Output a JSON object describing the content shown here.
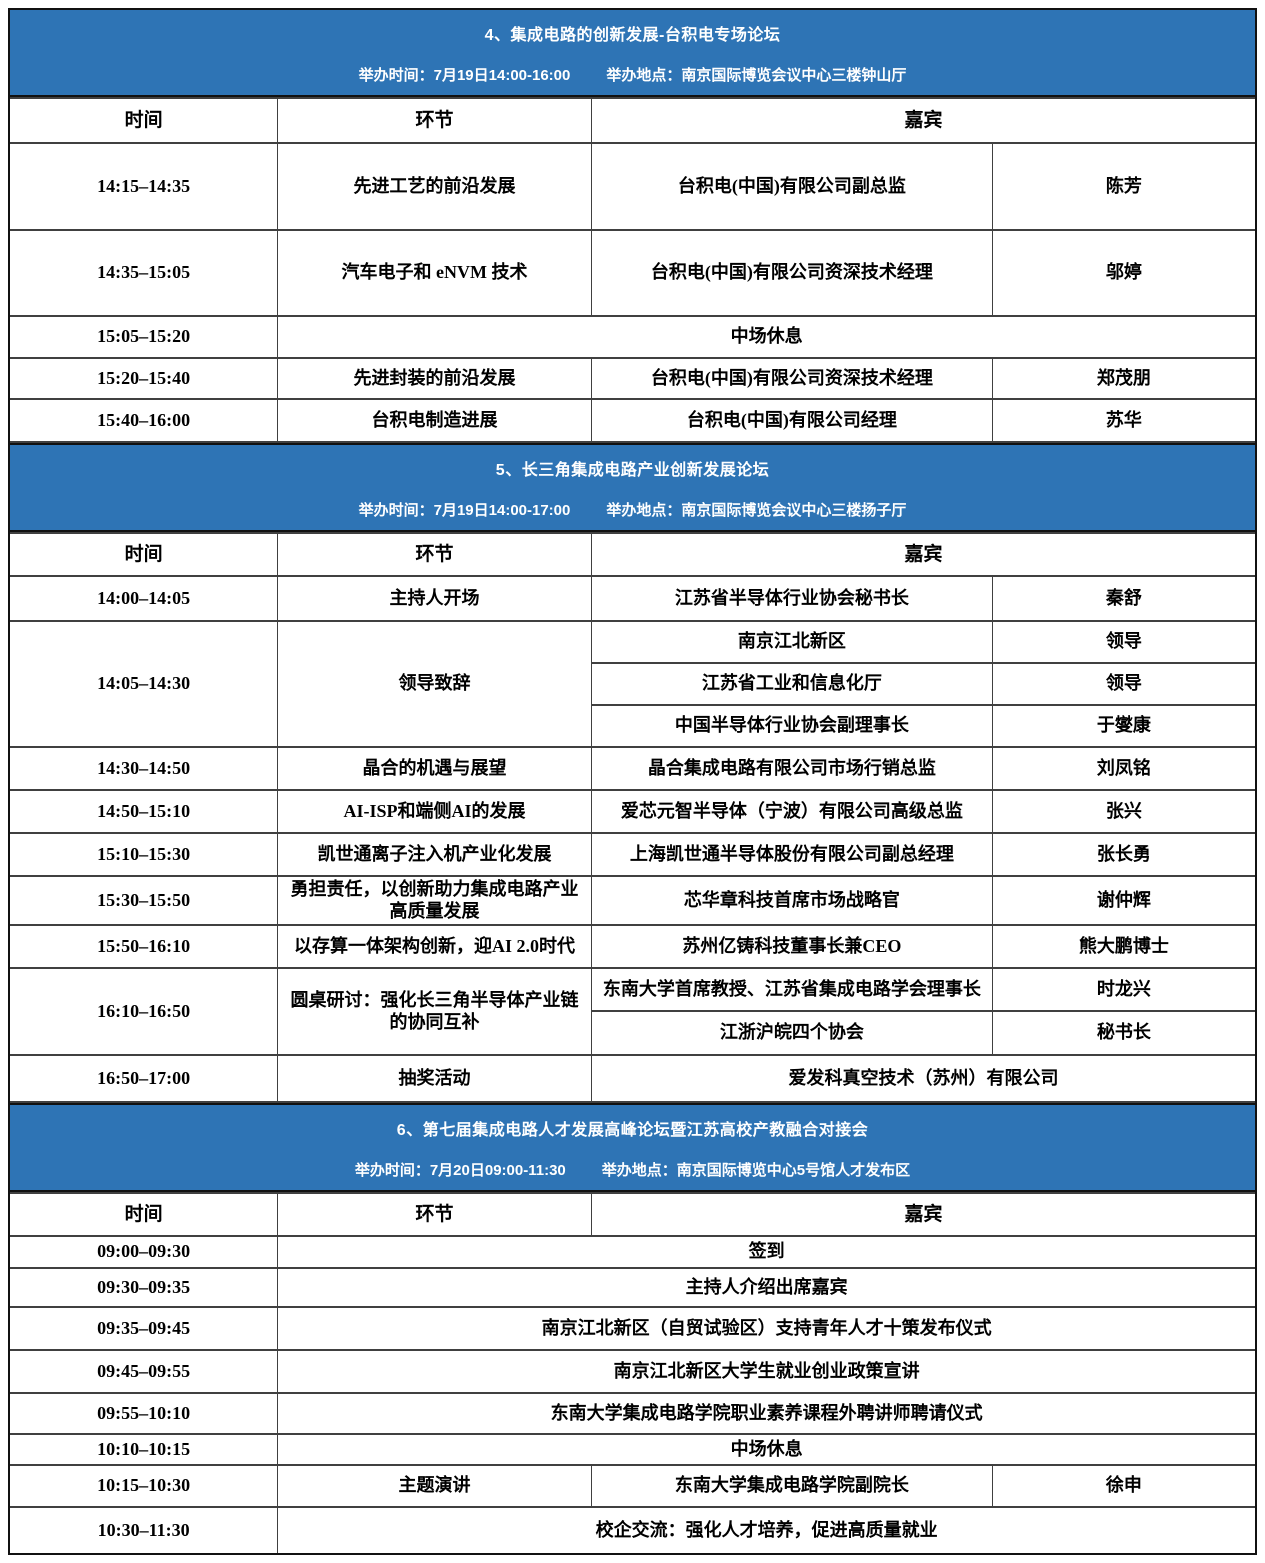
{
  "colors": {
    "banner_bg": "#2E74B5",
    "banner_text": "#FFFFFF",
    "grid_line": "#404040",
    "table_text": "#000000"
  },
  "table_headers": [
    "时间",
    "环节",
    "嘉宾"
  ],
  "sections": [
    {
      "title": "4、集成电路的创新发展-台积电专场论坛",
      "time": "举办时间：7月19日14:00-16:00",
      "venue": "举办地点：南京国际博览会议中心三楼钟山厅",
      "rows": [
        [
          "14:15–14:35",
          "先进工艺的前沿发展",
          "台积电(中国)有限公司副总监",
          "陈芳"
        ],
        [
          "14:35–15:05",
          "汽车电子和 eNVM 技术",
          "台积电(中国)有限公司资深技术经理",
          "邬婷"
        ],
        [
          "15:05–15:20",
          {
            "t": "中场休息",
            "cs": 3
          }
        ],
        [
          "15:20–15:40",
          "先进封装的前沿发展",
          "台积电(中国)有限公司资深技术经理",
          "郑茂朋"
        ],
        [
          "15:40–16:00",
          "台积电制造进展",
          "台积电(中国)有限公司经理",
          "苏华"
        ]
      ]
    },
    {
      "title": "5、长三角集成电路产业创新发展论坛",
      "time": "举办时间：7月19日14:00-17:00",
      "venue": "举办地点：南京国际博览会议中心三楼扬子厅",
      "rows": [
        [
          "14:00–14:05",
          "主持人开场",
          "江苏省半导体行业协会秘书长",
          "秦舒"
        ],
        [
          {
            "t": "14:05–14:30",
            "rs": 3
          },
          {
            "t": "领导致辞",
            "rs": 3
          },
          "南京江北新区",
          "领导"
        ],
        [
          "江苏省工业和信息化厅",
          "领导"
        ],
        [
          "中国半导体行业协会副理事长",
          "于燮康"
        ],
        [
          "14:30–14:50",
          "晶合的机遇与展望",
          "晶合集成电路有限公司市场行销总监",
          "刘凤铭"
        ],
        [
          "14:50–15:10",
          "AI-ISP和端侧AI的发展",
          "爱芯元智半导体（宁波）有限公司高级总监",
          "张兴"
        ],
        [
          "15:10–15:30",
          "凯世通离子注入机产业化发展",
          "上海凯世通半导体股份有限公司副总经理",
          "张长勇"
        ],
        [
          "15:30–15:50",
          "勇担责任，以创新助力集成电路产业高质量发展",
          "芯华章科技首席市场战略官",
          "谢仲辉"
        ],
        [
          "15:50–16:10",
          "以存算一体架构创新，迎AI 2.0时代",
          "苏州亿铸科技董事长兼CEO",
          "熊大鹏博士"
        ],
        [
          {
            "t": "16:10–16:50",
            "rs": 2
          },
          {
            "t": "圆桌研讨：强化长三角半导体产业链的协同互补",
            "rs": 2
          },
          "东南大学首席教授、江苏省集成电路学会理事长",
          "时龙兴"
        ],
        [
          "江浙沪皖四个协会",
          "秘书长"
        ],
        [
          "16:50–17:00",
          "抽奖活动",
          {
            "t": "爱发科真空技术（苏州）有限公司",
            "cs": 2
          }
        ]
      ]
    },
    {
      "title": "6、第七届集成电路人才发展高峰论坛暨江苏高校产教融合对接会",
      "time": "举办时间：7月20日09:00-11:30",
      "venue": "举办地点：南京国际博览中心5号馆人才发布区",
      "rows": [
        [
          "09:00–09:30",
          {
            "t": "签到",
            "cs": 3
          }
        ],
        [
          "09:30–09:35",
          {
            "t": "主持人介绍出席嘉宾",
            "cs": 3
          }
        ],
        [
          "09:35–09:45",
          {
            "t": "南京江北新区（自贸试验区）支持青年人才十策发布仪式",
            "cs": 3
          }
        ],
        [
          "09:45–09:55",
          {
            "t": "南京江北新区大学生就业创业政策宣讲",
            "cs": 3
          }
        ],
        [
          "09:55–10:10",
          {
            "t": "东南大学集成电路学院职业素养课程外聘讲师聘请仪式",
            "cs": 3
          }
        ],
        [
          "10:10–10:15",
          {
            "t": "中场休息",
            "cs": 3
          }
        ],
        [
          "10:15–10:30",
          "主题演讲",
          "东南大学集成电路学院副院长",
          "徐申"
        ],
        [
          "10:30–11:30",
          {
            "t": "校企交流：强化人才培养，促进高质量就业",
            "cs": 3
          }
        ]
      ]
    }
  ]
}
